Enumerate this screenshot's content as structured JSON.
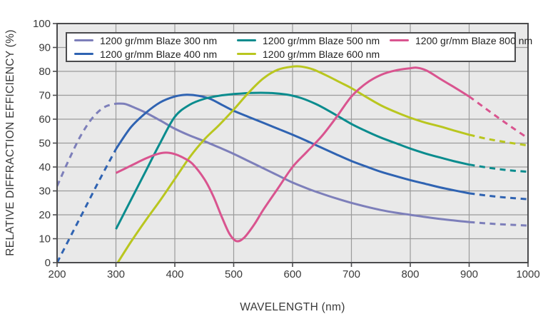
{
  "chart_data": {
    "type": "line",
    "title": "",
    "xlabel": "WAVELENGTH (nm)",
    "ylabel": "RELATIVE DIFFRACTION EFFICIENCY (%)",
    "xlim": [
      200,
      1000
    ],
    "ylim": [
      0,
      100
    ],
    "x_ticks": [
      200,
      300,
      400,
      500,
      600,
      700,
      800,
      900,
      1000
    ],
    "y_ticks": [
      0,
      10,
      20,
      30,
      40,
      50,
      60,
      70,
      80,
      90,
      100
    ],
    "grid": true,
    "legend_position": "top-inside",
    "colors": {
      "plot_bg": "#e9e9e9",
      "grid": "#9b9b9b",
      "frame": "#4b4b4d",
      "text": "#3a3a3a"
    },
    "series": [
      {
        "id": "blaze-300",
        "label": "1200 gr/mm Blaze 300 nm",
        "color": "#7d7fba",
        "segments": [
          {
            "to": 300,
            "dashed": true
          },
          {
            "to": 900,
            "dashed": false
          },
          {
            "to": 1000,
            "dashed": true
          }
        ],
        "points": [
          [
            200,
            32
          ],
          [
            220,
            43
          ],
          [
            240,
            53
          ],
          [
            260,
            60.5
          ],
          [
            280,
            65
          ],
          [
            300,
            66.5
          ],
          [
            315,
            66.4
          ],
          [
            330,
            65
          ],
          [
            350,
            62.8
          ],
          [
            375,
            59.5
          ],
          [
            400,
            56
          ],
          [
            425,
            53.2
          ],
          [
            450,
            50.8
          ],
          [
            475,
            48.2
          ],
          [
            500,
            45.5
          ],
          [
            525,
            42.5
          ],
          [
            550,
            39.5
          ],
          [
            575,
            36.5
          ],
          [
            600,
            33.5
          ],
          [
            625,
            31
          ],
          [
            650,
            28.8
          ],
          [
            675,
            26.8
          ],
          [
            700,
            25
          ],
          [
            725,
            23.4
          ],
          [
            750,
            22
          ],
          [
            775,
            20.9
          ],
          [
            800,
            20
          ],
          [
            825,
            19.1
          ],
          [
            850,
            18.3
          ],
          [
            875,
            17.6
          ],
          [
            900,
            17
          ],
          [
            925,
            16.5
          ],
          [
            950,
            16.1
          ],
          [
            975,
            15.8
          ],
          [
            1000,
            15.5
          ]
        ]
      },
      {
        "id": "blaze-400",
        "label": "1200 gr/mm Blaze 400 nm",
        "color": "#2f63b2",
        "segments": [
          {
            "to": 300,
            "dashed": true
          },
          {
            "to": 900,
            "dashed": false
          },
          {
            "to": 1000,
            "dashed": true
          }
        ],
        "points": [
          [
            200,
            0
          ],
          [
            225,
            12
          ],
          [
            250,
            24
          ],
          [
            275,
            36
          ],
          [
            300,
            47.5
          ],
          [
            325,
            56.5
          ],
          [
            350,
            62.5
          ],
          [
            375,
            67
          ],
          [
            400,
            69.5
          ],
          [
            420,
            70.2
          ],
          [
            440,
            69.8
          ],
          [
            460,
            68.5
          ],
          [
            480,
            66
          ],
          [
            500,
            63.5
          ],
          [
            525,
            61
          ],
          [
            550,
            58.5
          ],
          [
            575,
            56
          ],
          [
            600,
            53.5
          ],
          [
            625,
            50.8
          ],
          [
            650,
            48
          ],
          [
            675,
            45.2
          ],
          [
            700,
            42.5
          ],
          [
            725,
            40.2
          ],
          [
            750,
            38
          ],
          [
            775,
            36.2
          ],
          [
            800,
            34.5
          ],
          [
            825,
            33
          ],
          [
            850,
            31.5
          ],
          [
            875,
            30.2
          ],
          [
            900,
            29
          ],
          [
            925,
            28.2
          ],
          [
            950,
            27.5
          ],
          [
            975,
            27
          ],
          [
            1000,
            26.5
          ]
        ]
      },
      {
        "id": "blaze-500",
        "label": "1200 gr/mm Blaze 500 nm",
        "color": "#0a8c8e",
        "segments": [
          {
            "to": 900,
            "dashed": false
          },
          {
            "to": 1000,
            "dashed": true
          }
        ],
        "points": [
          [
            300,
            14
          ],
          [
            325,
            26
          ],
          [
            350,
            38
          ],
          [
            375,
            50
          ],
          [
            400,
            61
          ],
          [
            425,
            66
          ],
          [
            450,
            68.5
          ],
          [
            475,
            69.8
          ],
          [
            500,
            70.5
          ],
          [
            530,
            71
          ],
          [
            560,
            71
          ],
          [
            590,
            70.3
          ],
          [
            615,
            68.8
          ],
          [
            640,
            66.3
          ],
          [
            665,
            63
          ],
          [
            700,
            58
          ],
          [
            725,
            55
          ],
          [
            750,
            52.3
          ],
          [
            775,
            50
          ],
          [
            800,
            47.7
          ],
          [
            825,
            45.7
          ],
          [
            850,
            44
          ],
          [
            875,
            42.4
          ],
          [
            900,
            41
          ],
          [
            930,
            39.8
          ],
          [
            965,
            38.7
          ],
          [
            1000,
            38
          ]
        ]
      },
      {
        "id": "blaze-600",
        "label": "1200 gr/mm Blaze 600 nm",
        "color": "#b9c61f",
        "segments": [
          {
            "to": 900,
            "dashed": false
          },
          {
            "to": 1000,
            "dashed": true
          }
        ],
        "points": [
          [
            303,
            0
          ],
          [
            325,
            8.5
          ],
          [
            350,
            17.5
          ],
          [
            375,
            26
          ],
          [
            400,
            35
          ],
          [
            425,
            44
          ],
          [
            450,
            51.5
          ],
          [
            475,
            57.5
          ],
          [
            500,
            64
          ],
          [
            525,
            71
          ],
          [
            550,
            77
          ],
          [
            575,
            80.7
          ],
          [
            600,
            82
          ],
          [
            615,
            82
          ],
          [
            635,
            80.8
          ],
          [
            660,
            78
          ],
          [
            680,
            75.5
          ],
          [
            700,
            73
          ],
          [
            725,
            69.3
          ],
          [
            750,
            65.8
          ],
          [
            775,
            63
          ],
          [
            800,
            60.6
          ],
          [
            825,
            58.6
          ],
          [
            850,
            57
          ],
          [
            875,
            55.2
          ],
          [
            900,
            53.5
          ],
          [
            930,
            51.8
          ],
          [
            965,
            50.3
          ],
          [
            1000,
            49
          ]
        ]
      },
      {
        "id": "blaze-800",
        "label": "1200 gr/mm Blaze 800 nm",
        "color": "#d9548f",
        "segments": [
          {
            "to": 900,
            "dashed": false
          },
          {
            "to": 1000,
            "dashed": true
          }
        ],
        "points": [
          [
            300,
            37.5
          ],
          [
            325,
            40.5
          ],
          [
            350,
            43.5
          ],
          [
            370,
            45.4
          ],
          [
            385,
            46
          ],
          [
            400,
            45.4
          ],
          [
            415,
            43.8
          ],
          [
            430,
            41.3
          ],
          [
            450,
            35
          ],
          [
            465,
            28
          ],
          [
            480,
            19
          ],
          [
            493,
            12
          ],
          [
            505,
            9
          ],
          [
            518,
            10.5
          ],
          [
            535,
            16
          ],
          [
            550,
            22
          ],
          [
            575,
            31
          ],
          [
            600,
            40
          ],
          [
            625,
            46.5
          ],
          [
            650,
            53
          ],
          [
            675,
            61
          ],
          [
            700,
            69.5
          ],
          [
            725,
            75
          ],
          [
            750,
            78.5
          ],
          [
            775,
            80.4
          ],
          [
            800,
            81.3
          ],
          [
            812,
            81.5
          ],
          [
            828,
            80.3
          ],
          [
            850,
            77
          ],
          [
            875,
            73.3
          ],
          [
            900,
            69.5
          ],
          [
            925,
            65
          ],
          [
            950,
            60.5
          ],
          [
            975,
            56.2
          ],
          [
            1000,
            52
          ]
        ]
      }
    ]
  }
}
